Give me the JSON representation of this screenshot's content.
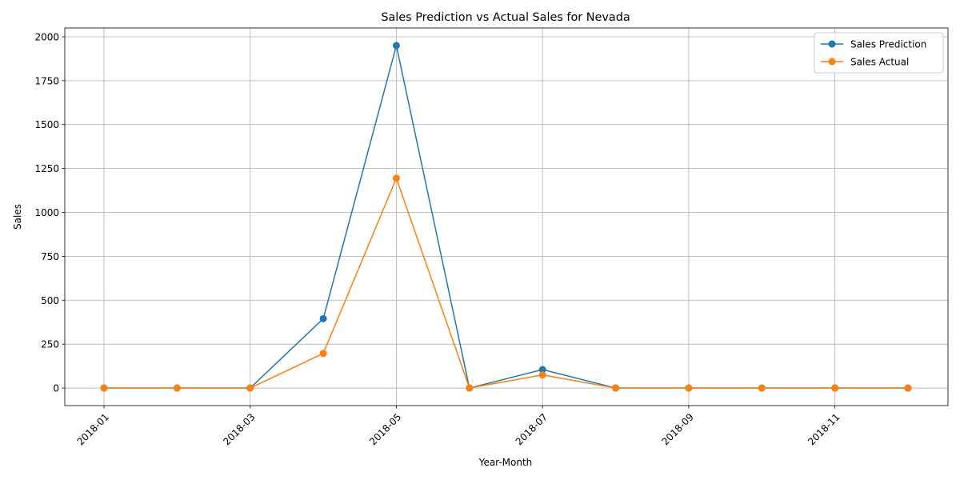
{
  "chart_data": {
    "type": "line",
    "title": "Sales Prediction vs Actual Sales for Nevada",
    "xlabel": "Year-Month",
    "ylabel": "Sales",
    "x": [
      "2018-01",
      "2018-02",
      "2018-03",
      "2018-04",
      "2018-05",
      "2018-06",
      "2018-07",
      "2018-08",
      "2018-09",
      "2018-10",
      "2018-11",
      "2018-12"
    ],
    "x_tick_labels": [
      "2018-01",
      "2018-03",
      "2018-05",
      "2018-07",
      "2018-09",
      "2018-11"
    ],
    "y_tick_labels": [
      "0",
      "250",
      "500",
      "750",
      "1000",
      "1250",
      "1500",
      "1750",
      "2000"
    ],
    "ylim": [
      -100,
      2050
    ],
    "grid": true,
    "legend_position": "top-right",
    "series": [
      {
        "name": "Sales Prediction",
        "color": "#1f77b4",
        "marker": "circle",
        "values": [
          0,
          0,
          0,
          395,
          1950,
          0,
          105,
          0,
          0,
          0,
          0,
          0
        ]
      },
      {
        "name": "Sales Actual",
        "color": "#ff7f0e",
        "marker": "circle",
        "values": [
          0,
          0,
          0,
          197,
          1195,
          0,
          75,
          0,
          0,
          0,
          0,
          0
        ]
      }
    ]
  }
}
